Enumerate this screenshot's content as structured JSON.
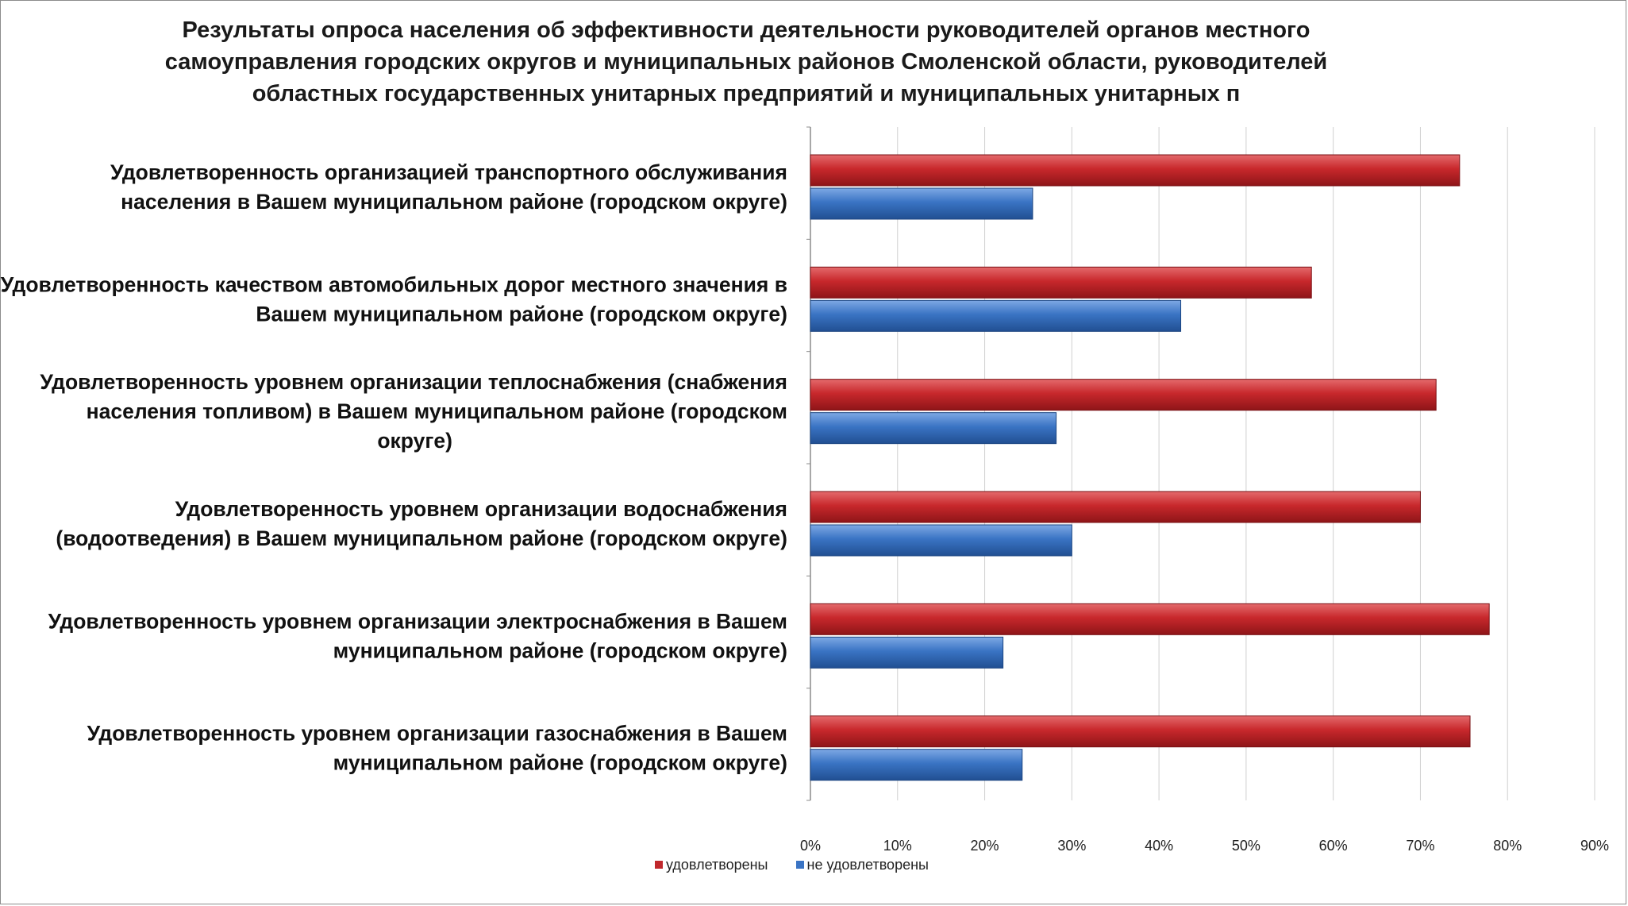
{
  "chart_data": {
    "type": "bar",
    "orientation": "horizontal",
    "title_lines": [
      "Результаты опроса населения об эффективности деятельности руководителей органов местного",
      "самоуправления городских округов и муниципальных районов Смоленской области, руководителей",
      "областных государственных унитарных предприятий и муниципальных унитарных п"
    ],
    "categories": [
      [
        "Удовлетворенность организацией транспортного обслуживания",
        "населения в Вашем муниципальном районе (городском округе)"
      ],
      [
        "Удовлетворенность качеством автомобильных дорог местного значения в",
        "Вашем муниципальном районе (городском округе)"
      ],
      [
        "Удовлетворенность уровнем организации теплоснабжения (снабжения",
        "населения топливом) в Вашем муниципальном районе (городском",
        "округе)"
      ],
      [
        "Удовлетворенность уровнем организации водоснабжения",
        "(водоотведения) в Вашем муниципальном районе (городском округе)"
      ],
      [
        "Удовлетворенность уровнем организации электроснабжения в Вашем",
        "муниципальном районе (городском округе)"
      ],
      [
        "Удовлетворенность уровнем организации газоснабжения в Вашем",
        "муниципальном районе (городском округе)"
      ]
    ],
    "series": [
      {
        "name": "удовлетворены",
        "color": "#c0282c",
        "values": [
          74.5,
          57.5,
          71.8,
          70.0,
          77.9,
          75.7
        ]
      },
      {
        "name": "не удовлетворены",
        "color": "#3a74c4",
        "values": [
          25.5,
          42.5,
          28.2,
          30.0,
          22.1,
          24.3
        ]
      }
    ],
    "xlim": [
      0,
      90
    ],
    "x_ticks": [
      "0%",
      "10%",
      "20%",
      "30%",
      "40%",
      "50%",
      "60%",
      "70%",
      "80%",
      "90%"
    ],
    "grid": true,
    "legend_position": "bottom-left"
  }
}
